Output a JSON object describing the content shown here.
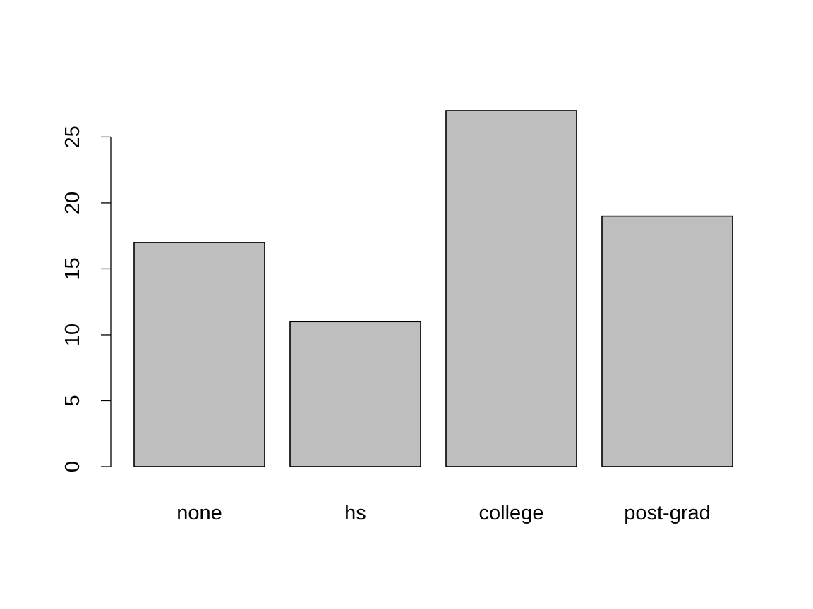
{
  "chart_data": {
    "type": "bar",
    "title": "",
    "xlabel": "",
    "ylabel": "",
    "categories": [
      "none",
      "hs",
      "college",
      "post-grad"
    ],
    "values": [
      17,
      11,
      27,
      19
    ],
    "ylim": [
      0,
      27
    ],
    "yticks": [
      0,
      5,
      10,
      15,
      20,
      25
    ],
    "grid": false,
    "bar_fill": "#bebebe",
    "bar_stroke": "#000000"
  }
}
